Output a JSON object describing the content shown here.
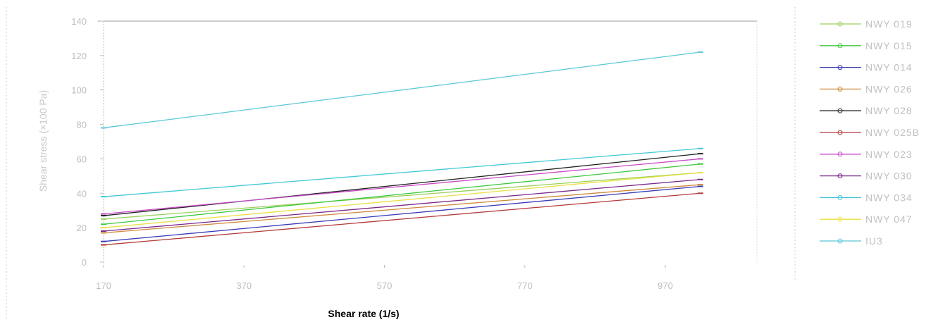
{
  "chart_data": {
    "type": "line",
    "title": "",
    "xlabel": "Shear rate (1/s)",
    "ylabel": "Shear stress (×100 Pa)",
    "x_ticks": [
      170,
      370,
      570,
      770,
      970
    ],
    "y_ticks": [
      0,
      20,
      40,
      60,
      80,
      100,
      120,
      140
    ],
    "xlim": [
      170,
      1020
    ],
    "ylim": [
      0,
      140
    ],
    "grid": false,
    "legend_position": "right",
    "x": [
      170,
      1020
    ],
    "series": [
      {
        "name": "NWY 019",
        "color": "#9bcf5a",
        "values": [
          25,
          52
        ]
      },
      {
        "name": "NWY 015",
        "color": "#3ec83e",
        "values": [
          22,
          57
        ]
      },
      {
        "name": "NWY 014",
        "color": "#3a3ab8",
        "values": [
          12,
          44
        ]
      },
      {
        "name": "NWY 026",
        "color": "#cf8a3c",
        "values": [
          17,
          45
        ]
      },
      {
        "name": "NWY 028",
        "color": "#222222",
        "values": [
          27,
          63
        ]
      },
      {
        "name": "NWY 025B",
        "color": "#b33a3a",
        "values": [
          10,
          40
        ]
      },
      {
        "name": "NWY 023",
        "color": "#c84ac8",
        "values": [
          28,
          60
        ]
      },
      {
        "name": "NWY 030",
        "color": "#7a2a8a",
        "values": [
          18,
          48
        ]
      },
      {
        "name": "NWY 034",
        "color": "#40c8d8",
        "values": [
          38,
          66
        ]
      },
      {
        "name": "NWY 047",
        "color": "#e8e040",
        "values": [
          20,
          52
        ]
      },
      {
        "name": "IU3",
        "color": "#5ac8d8",
        "values": [
          78,
          122
        ]
      }
    ]
  }
}
